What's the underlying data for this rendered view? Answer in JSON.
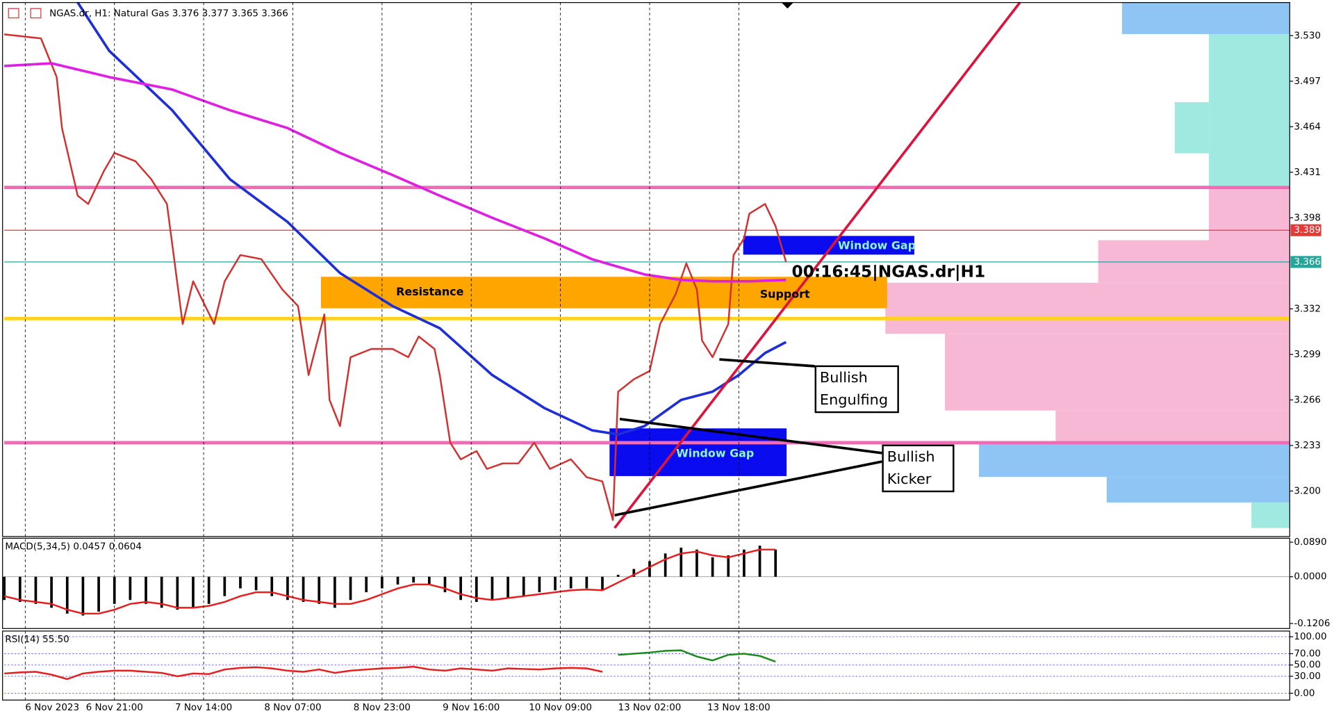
{
  "chart_data": [
    {
      "type": "line",
      "title": "NGAS.dr, H1:  Natural Gas  3.376 3.377 3.365 3.366",
      "xlim": [
        0,
        245
      ],
      "ylim": [
        3.167,
        3.554
      ],
      "yticks": [
        {
          "value": 3.53,
          "label": "3.530"
        },
        3.497,
        3.464,
        3.431,
        3.398,
        3.332,
        3.299,
        3.266,
        3.233,
        {
          "value": 3.2,
          "label": "3.200"
        }
      ],
      "series": [
        {
          "color": "#d32f2f",
          "x": [
            0,
            7,
            10,
            11,
            14,
            16,
            19,
            21,
            25,
            28,
            31,
            34,
            36,
            40,
            42,
            45,
            49,
            53,
            56,
            58,
            61,
            62,
            64,
            66,
            70,
            74,
            77,
            79,
            82,
            83,
            85,
            87,
            90,
            92,
            95,
            98,
            101,
            104,
            108,
            111,
            114,
            116,
            117,
            120,
            123,
            125,
            128,
            130,
            132,
            133,
            135,
            138,
            139,
            141,
            142,
            145,
            147,
            149
          ],
          "values": [
            3.531,
            3.528,
            3.5,
            3.463,
            3.414,
            3.408,
            3.432,
            3.445,
            3.439,
            3.426,
            3.408,
            3.321,
            3.352,
            3.321,
            3.352,
            3.371,
            3.368,
            3.346,
            3.334,
            3.284,
            3.328,
            3.266,
            3.247,
            3.297,
            3.303,
            3.303,
            3.297,
            3.312,
            3.303,
            3.284,
            3.235,
            3.223,
            3.229,
            3.216,
            3.22,
            3.22,
            3.235,
            3.216,
            3.223,
            3.21,
            3.207,
            3.179,
            3.272,
            3.281,
            3.287,
            3.321,
            3.343,
            3.365,
            3.346,
            3.309,
            3.297,
            3.321,
            3.371,
            3.383,
            3.401,
            3.408,
            3.392,
            3.366
          ]
        },
        {
          "color": "#1f2fd6",
          "x": [
            14,
            20,
            32,
            43,
            54,
            64,
            74,
            83,
            93,
            103,
            112,
            117,
            122,
            129,
            135,
            140,
            145,
            149
          ],
          "values": [
            3.554,
            3.519,
            3.476,
            3.426,
            3.395,
            3.358,
            3.334,
            3.318,
            3.284,
            3.26,
            3.244,
            3.241,
            3.247,
            3.266,
            3.272,
            3.284,
            3.3,
            3.308
          ]
        },
        {
          "color": "#e020e0",
          "x": [
            0,
            9,
            20,
            32,
            43,
            54,
            64,
            74,
            83,
            93,
            103,
            112,
            122,
            129,
            135,
            142,
            149
          ],
          "values": [
            3.508,
            3.51,
            3.5,
            3.491,
            3.476,
            3.463,
            3.445,
            3.429,
            3.414,
            3.398,
            3.383,
            3.368,
            3.357,
            3.353,
            3.352,
            3.352,
            3.353
          ]
        }
      ],
      "levels": [
        {
          "value": 3.42,
          "color": "#f06bb4"
        },
        {
          "value": 3.235,
          "color": "#f06bb4"
        },
        {
          "value": 3.325,
          "color": "#ffd21f"
        }
      ],
      "price_markers": [
        {
          "value": 3.389,
          "color": "#e53935"
        },
        {
          "value": 3.366,
          "color": "#26a69a"
        }
      ],
      "annotations": [
        "Resistance",
        "Support",
        "Window Gap",
        "Window Gap",
        "Bullish Engulfing",
        "Bullish Kicker",
        "00:16:45|NGAS.dr|H1"
      ]
    },
    {
      "type": "bar",
      "title": "MACD(5,34,5) 0.0457 0.0604",
      "xlim": [
        0,
        245
      ],
      "ylim": [
        -0.1335,
        0.0992
      ],
      "yticks": [
        {
          "value": 0.089,
          "label": "0.0890"
        },
        {
          "value": 0,
          "label": "0.0000"
        },
        {
          "value": -0.1206,
          "label": "-0.1206"
        }
      ],
      "x": [
        0,
        3,
        6,
        9,
        12,
        15,
        18,
        21,
        24,
        27,
        30,
        33,
        36,
        39,
        42,
        45,
        48,
        51,
        54,
        57,
        60,
        63,
        66,
        69,
        72,
        75,
        78,
        81,
        84,
        87,
        90,
        93,
        96,
        99,
        102,
        105,
        108,
        111,
        114,
        117,
        120,
        123,
        126,
        129,
        132,
        135,
        138,
        141,
        144,
        147
      ],
      "series": [
        {
          "type": "bar",
          "color": "#000000",
          "values": [
            -0.06,
            -0.065,
            -0.07,
            -0.08,
            -0.095,
            -0.1,
            -0.09,
            -0.07,
            -0.06,
            -0.07,
            -0.08,
            -0.085,
            -0.08,
            -0.07,
            -0.05,
            -0.03,
            -0.035,
            -0.05,
            -0.06,
            -0.065,
            -0.07,
            -0.08,
            -0.06,
            -0.04,
            -0.03,
            -0.02,
            -0.015,
            -0.02,
            -0.04,
            -0.06,
            -0.065,
            -0.06,
            -0.055,
            -0.05,
            -0.04,
            -0.035,
            -0.03,
            -0.03,
            -0.035,
            0.005,
            0.02,
            0.04,
            0.06,
            0.075,
            0.07,
            0.05,
            0.055,
            0.07,
            0.08,
            0.07
          ]
        },
        {
          "type": "line",
          "color": "#e81c1c",
          "values": [
            -0.05,
            -0.06,
            -0.065,
            -0.07,
            -0.085,
            -0.095,
            -0.095,
            -0.085,
            -0.07,
            -0.065,
            -0.07,
            -0.08,
            -0.08,
            -0.075,
            -0.065,
            -0.05,
            -0.04,
            -0.04,
            -0.05,
            -0.06,
            -0.065,
            -0.07,
            -0.07,
            -0.06,
            -0.045,
            -0.03,
            -0.02,
            -0.02,
            -0.03,
            -0.045,
            -0.055,
            -0.06,
            -0.055,
            -0.05,
            -0.045,
            -0.04,
            -0.035,
            -0.033,
            -0.035,
            -0.015,
            0.005,
            0.025,
            0.045,
            0.06,
            0.065,
            0.055,
            0.05,
            0.06,
            0.07,
            0.07
          ]
        }
      ]
    },
    {
      "type": "line",
      "title": "RSI(14) 55.50",
      "xlim": [
        0,
        245
      ],
      "ylim": [
        -12,
        110
      ],
      "yticks": [
        {
          "value": 100,
          "label": "100.00"
        },
        {
          "value": 70,
          "label": "70.00"
        },
        {
          "value": 50,
          "label": "50.00"
        },
        {
          "value": 30,
          "label": "30.00"
        },
        {
          "value": 0,
          "label": "0.00"
        }
      ],
      "xticks": [
        {
          "value": 4,
          "label": "6 Nov 2023"
        },
        {
          "value": 21,
          "label": "6 Nov 21:00"
        },
        {
          "value": 38,
          "label": "7 Nov 14:00"
        },
        {
          "value": 55,
          "label": "8 Nov 07:00"
        },
        {
          "value": 72,
          "label": "8 Nov 23:00"
        },
        {
          "value": 89,
          "label": "9 Nov 16:00"
        },
        {
          "value": 106,
          "label": "10 Nov 09:00"
        },
        {
          "value": 123,
          "label": "13 Nov 02:00"
        },
        {
          "value": 140,
          "label": "13 Nov 18:00"
        }
      ],
      "x": [
        0,
        3,
        6,
        9,
        12,
        15,
        18,
        21,
        24,
        27,
        30,
        33,
        36,
        39,
        42,
        45,
        48,
        51,
        54,
        57,
        60,
        63,
        66,
        69,
        72,
        75,
        78,
        81,
        84,
        87,
        90,
        93,
        96,
        99,
        102,
        105,
        108,
        111,
        114,
        117,
        120,
        123,
        126,
        129,
        132,
        135,
        138,
        141,
        144,
        147
      ],
      "series": [
        {
          "color": "#e81c1c",
          "values": [
            35,
            37,
            38,
            33,
            25,
            35,
            38,
            40,
            40,
            38,
            36,
            30,
            35,
            34,
            42,
            45,
            46,
            44,
            40,
            38,
            42,
            36,
            40,
            42,
            44,
            45,
            47,
            42,
            40,
            44,
            42,
            40,
            44,
            43,
            42,
            44,
            45,
            44,
            38,
            null,
            null,
            null,
            null,
            null,
            null,
            null,
            null,
            null,
            null,
            null
          ]
        },
        {
          "color": "#1a8a1a",
          "values": [
            null,
            null,
            null,
            null,
            null,
            null,
            null,
            null,
            null,
            null,
            null,
            null,
            null,
            null,
            null,
            null,
            null,
            null,
            null,
            null,
            null,
            null,
            null,
            null,
            null,
            null,
            null,
            null,
            null,
            null,
            null,
            null,
            null,
            null,
            null,
            null,
            null,
            null,
            null,
            68,
            70,
            72,
            75,
            76,
            65,
            58,
            68,
            70,
            66,
            56
          ]
        }
      ]
    }
  ]
}
